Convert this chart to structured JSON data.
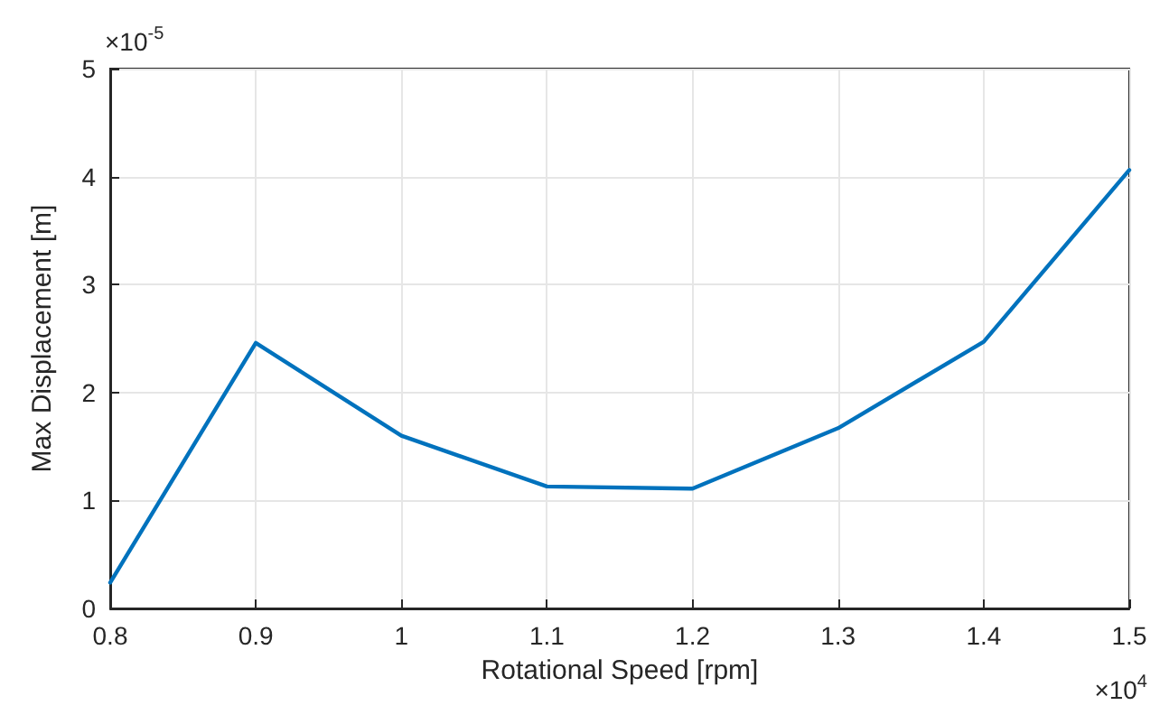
{
  "chart_data": {
    "type": "line",
    "xlabel": "Rotational Speed [rpm]",
    "ylabel": "Max Displacement [m]",
    "annotations": [
      "×10$^{-5}$",
      "×10$^{4}$"
    ],
    "x": [
      0.8,
      0.9,
      1.0,
      1.1,
      1.2,
      1.3,
      1.4,
      1.5
    ],
    "series": [
      {
        "color": "#0072bd",
        "values": [
          0.24,
          2.46,
          1.6,
          1.13,
          1.11,
          1.67,
          2.47,
          4.06
        ]
      }
    ],
    "xlim": [
      0.8,
      1.5
    ],
    "xticks": [
      0.8,
      0.9,
      1,
      1.1,
      1.2,
      1.3,
      1.4,
      1.5
    ],
    "ylim": [
      0,
      5
    ],
    "yticks": [
      0,
      1,
      2,
      3,
      4,
      5
    ],
    "grid": true,
    "marker": "none",
    "line_style": "solid"
  }
}
